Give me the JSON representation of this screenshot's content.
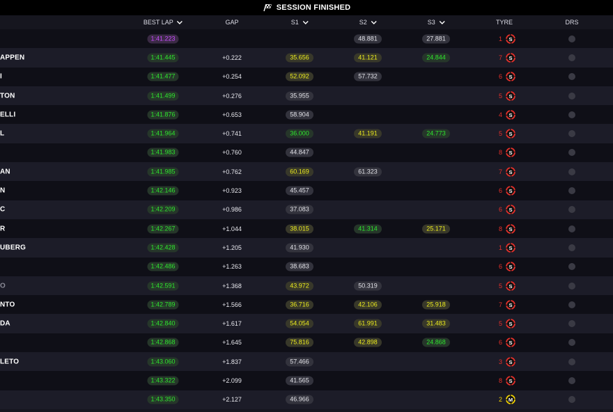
{
  "session": {
    "status": "SESSION FINISHED"
  },
  "columns": {
    "best_lap": "BEST LAP",
    "gap": "GAP",
    "s1": "S1",
    "s2": "S2",
    "s3": "S3",
    "tyre": "TYRE",
    "drs": "DRS"
  },
  "colors": {
    "purple": "#c84cff",
    "green": "#2ee52e",
    "yellow": "#eaea1e",
    "white": "#e0e0e6",
    "soft_red": "#e8302a",
    "medium_yellow": "#f2d200"
  },
  "drivers": [
    {
      "name": "",
      "best": "1:41.223",
      "bestColor": "purple",
      "gap": "",
      "s1": "",
      "s1c": "",
      "s2": "48.881",
      "s2c": "white",
      "s3": "27.881",
      "s3c": "white",
      "age": "1",
      "tyre": "S",
      "dim": false
    },
    {
      "name": "APPEN",
      "best": "1:41.445",
      "bestColor": "green",
      "gap": "+0.222",
      "s1": "35.656",
      "s1c": "yellow",
      "s2": "41.121",
      "s2c": "yellow",
      "s3": "24.844",
      "s3c": "green",
      "age": "7",
      "tyre": "S",
      "dim": false
    },
    {
      "name": "I",
      "best": "1:41.477",
      "bestColor": "green",
      "gap": "+0.254",
      "s1": "52.092",
      "s1c": "yellow",
      "s2": "57.732",
      "s2c": "white",
      "s3": "",
      "s3c": "",
      "age": "6",
      "tyre": "S",
      "dim": false
    },
    {
      "name": "TON",
      "best": "1:41.499",
      "bestColor": "green",
      "gap": "+0.276",
      "s1": "35.955",
      "s1c": "white",
      "s2": "",
      "s2c": "",
      "s3": "",
      "s3c": "",
      "age": "5",
      "tyre": "S",
      "dim": false
    },
    {
      "name": "ELLI",
      "best": "1:41.876",
      "bestColor": "green",
      "gap": "+0.653",
      "s1": "58.904",
      "s1c": "white",
      "s2": "",
      "s2c": "",
      "s3": "",
      "s3c": "",
      "age": "4",
      "tyre": "S",
      "dim": false
    },
    {
      "name": "L",
      "best": "1:41.964",
      "bestColor": "green",
      "gap": "+0.741",
      "s1": "36.000",
      "s1c": "green",
      "s2": "41.191",
      "s2c": "yellow",
      "s3": "24.773",
      "s3c": "green",
      "age": "5",
      "tyre": "S",
      "dim": false
    },
    {
      "name": "",
      "best": "1:41.983",
      "bestColor": "green",
      "gap": "+0.760",
      "s1": "44.847",
      "s1c": "white",
      "s2": "",
      "s2c": "",
      "s3": "",
      "s3c": "",
      "age": "8",
      "tyre": "S",
      "dim": false
    },
    {
      "name": "AN",
      "best": "1:41.985",
      "bestColor": "green",
      "gap": "+0.762",
      "s1": "60.169",
      "s1c": "yellow",
      "s2": "61.323",
      "s2c": "white",
      "s3": "",
      "s3c": "",
      "age": "7",
      "tyre": "S",
      "dim": false
    },
    {
      "name": "N",
      "best": "1:42.146",
      "bestColor": "green",
      "gap": "+0.923",
      "s1": "45.457",
      "s1c": "white",
      "s2": "",
      "s2c": "",
      "s3": "",
      "s3c": "",
      "age": "6",
      "tyre": "S",
      "dim": false
    },
    {
      "name": "C",
      "best": "1:42.209",
      "bestColor": "green",
      "gap": "+0.986",
      "s1": "37.083",
      "s1c": "white",
      "s2": "",
      "s2c": "",
      "s3": "",
      "s3c": "",
      "age": "6",
      "tyre": "S",
      "dim": false
    },
    {
      "name": "R",
      "best": "1:42.267",
      "bestColor": "green",
      "gap": "+1.044",
      "s1": "38.015",
      "s1c": "yellow",
      "s2": "41.314",
      "s2c": "green",
      "s3": "25.171",
      "s3c": "yellow",
      "age": "8",
      "tyre": "S",
      "dim": false
    },
    {
      "name": "UBERG",
      "best": "1:42.428",
      "bestColor": "green",
      "gap": "+1.205",
      "s1": "41.930",
      "s1c": "white",
      "s2": "",
      "s2c": "",
      "s3": "",
      "s3c": "",
      "age": "1",
      "tyre": "S",
      "dim": false
    },
    {
      "name": "",
      "best": "1:42.486",
      "bestColor": "green",
      "gap": "+1.263",
      "s1": "38.683",
      "s1c": "white",
      "s2": "",
      "s2c": "",
      "s3": "",
      "s3c": "",
      "age": "6",
      "tyre": "S",
      "dim": false
    },
    {
      "name": "O",
      "best": "1:42.591",
      "bestColor": "green",
      "gap": "+1.368",
      "s1": "43.972",
      "s1c": "yellow",
      "s2": "50.319",
      "s2c": "white",
      "s3": "",
      "s3c": "",
      "age": "5",
      "tyre": "S",
      "dim": true
    },
    {
      "name": "NTO",
      "best": "1:42.789",
      "bestColor": "green",
      "gap": "+1.566",
      "s1": "36.716",
      "s1c": "yellow",
      "s2": "42.106",
      "s2c": "yellow",
      "s3": "25.918",
      "s3c": "yellow",
      "age": "7",
      "tyre": "S",
      "dim": false
    },
    {
      "name": "DA",
      "best": "1:42.840",
      "bestColor": "green",
      "gap": "+1.617",
      "s1": "54.054",
      "s1c": "yellow",
      "s2": "61.991",
      "s2c": "yellow",
      "s3": "31.483",
      "s3c": "yellow",
      "age": "5",
      "tyre": "S",
      "dim": false
    },
    {
      "name": "",
      "best": "1:42.868",
      "bestColor": "green",
      "gap": "+1.645",
      "s1": "75.816",
      "s1c": "yellow",
      "s2": "42.898",
      "s2c": "yellow",
      "s3": "24.868",
      "s3c": "green",
      "age": "6",
      "tyre": "S",
      "dim": false
    },
    {
      "name": "LETO",
      "best": "1:43.060",
      "bestColor": "green",
      "gap": "+1.837",
      "s1": "57.466",
      "s1c": "white",
      "s2": "",
      "s2c": "",
      "s3": "",
      "s3c": "",
      "age": "3",
      "tyre": "S",
      "dim": false
    },
    {
      "name": "",
      "best": "1:43.322",
      "bestColor": "green",
      "gap": "+2.099",
      "s1": "41.565",
      "s1c": "white",
      "s2": "",
      "s2c": "",
      "s3": "",
      "s3c": "",
      "age": "8",
      "tyre": "S",
      "dim": false
    },
    {
      "name": "",
      "best": "1:43.350",
      "bestColor": "green",
      "gap": "+2.127",
      "s1": "46.966",
      "s1c": "white",
      "s2": "",
      "s2c": "",
      "s3": "",
      "s3c": "",
      "age": "2",
      "tyre": "M",
      "dim": false
    }
  ]
}
